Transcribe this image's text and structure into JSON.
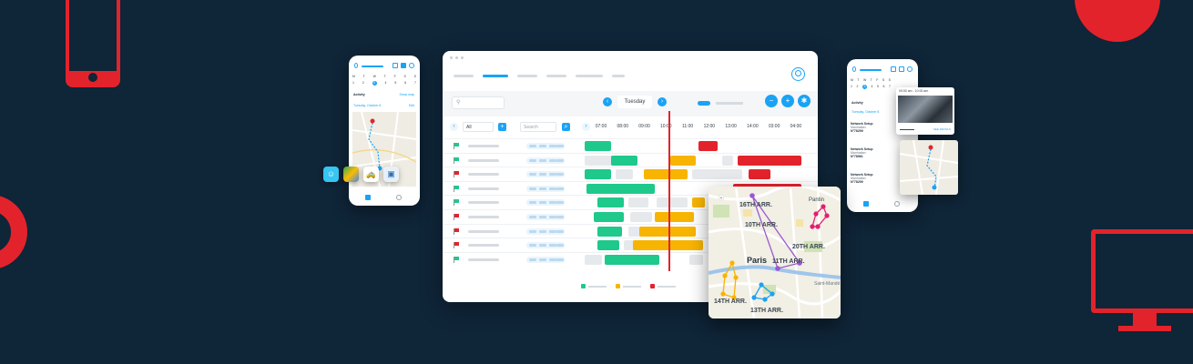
{
  "app": {
    "day_label": "Tuesday",
    "filter_value": "All",
    "search_placeholder": "Search",
    "prev_day": "‹",
    "next_day": "›",
    "filter_add": "+",
    "timeline_prev": "‹",
    "timeline_next": "›"
  },
  "colors": {
    "accent": "#1aa3f5",
    "green": "#1ec98b",
    "yellow": "#f7b400",
    "red": "#e3232b",
    "grey": "#e6e9ec",
    "background": "#0f2538"
  },
  "times": [
    "07:00",
    "08:00",
    "09:00",
    "10:00",
    "11:00",
    "12:00",
    "13:00",
    "14:00",
    "03:00",
    "04:00"
  ],
  "legend": [
    {
      "color": "green"
    },
    {
      "color": "yellow"
    },
    {
      "color": "red"
    }
  ],
  "rows": [
    {
      "flag": "green",
      "blocks": [
        [
          "green",
          0.0,
          0.12
        ],
        [
          "red",
          0.52,
          0.09
        ]
      ]
    },
    {
      "flag": "green",
      "blocks": [
        [
          "grey",
          0.0,
          0.22
        ],
        [
          "green",
          0.12,
          0.12
        ],
        [
          "yellow",
          0.39,
          0.12
        ],
        [
          "grey",
          0.63,
          0.05
        ],
        [
          "red",
          0.7,
          0.29
        ]
      ]
    },
    {
      "flag": "red",
      "blocks": [
        [
          "green",
          0.0,
          0.12
        ],
        [
          "grey",
          0.14,
          0.08
        ],
        [
          "yellow",
          0.27,
          0.2
        ],
        [
          "grey",
          0.49,
          0.23
        ],
        [
          "red",
          0.75,
          0.1
        ]
      ]
    },
    {
      "flag": "green",
      "blocks": [
        [
          "green",
          0.01,
          0.31
        ],
        [
          "red",
          0.68,
          0.31
        ]
      ]
    },
    {
      "flag": "green",
      "blocks": [
        [
          "green",
          0.06,
          0.12
        ],
        [
          "grey",
          0.2,
          0.09
        ],
        [
          "grey",
          0.33,
          0.14
        ],
        [
          "yellow",
          0.49,
          0.06
        ]
      ]
    },
    {
      "flag": "red",
      "blocks": [
        [
          "green",
          0.04,
          0.14
        ],
        [
          "grey",
          0.21,
          0.1
        ],
        [
          "yellow",
          0.32,
          0.18
        ]
      ]
    },
    {
      "flag": "red",
      "blocks": [
        [
          "green",
          0.06,
          0.11
        ],
        [
          "grey",
          0.2,
          0.09
        ],
        [
          "yellow",
          0.25,
          0.26
        ]
      ]
    },
    {
      "flag": "red",
      "blocks": [
        [
          "green",
          0.06,
          0.1
        ],
        [
          "grey",
          0.18,
          0.07
        ],
        [
          "yellow",
          0.22,
          0.32
        ]
      ]
    },
    {
      "flag": "green",
      "blocks": [
        [
          "grey",
          0.0,
          0.08
        ],
        [
          "green",
          0.09,
          0.25
        ],
        [
          "grey",
          0.48,
          0.06
        ]
      ]
    }
  ],
  "map": {
    "labels": [
      "16TH ARR.",
      "10TH ARR.",
      "Pantin",
      "Paris",
      "20TH ARR.",
      "11TH ARR.",
      "14TH ARR.",
      "13TH ARR.",
      "Saint-Mandé"
    ]
  },
  "phone_left": {
    "days": [
      "M",
      "T",
      "W",
      "T",
      "F",
      "S",
      "S"
    ],
    "nums": [
      "1",
      "2",
      "3",
      "4",
      "5",
      "6",
      "7"
    ],
    "selected_index": 2,
    "activity": "Activity",
    "show_label": "Show map",
    "filter_label": "Tuesday, October 8",
    "edit_label": "Edit"
  },
  "phone_right": {
    "days": [
      "M",
      "T",
      "W",
      "T",
      "F",
      "S",
      "S"
    ],
    "nums": [
      "1",
      "2",
      "3",
      "4",
      "5",
      "6",
      "7"
    ],
    "selected_index": 2,
    "activity": "Activity",
    "filter_label": "Tuesday, October 8",
    "items": [
      {
        "title": "Network Setup",
        "sub": "Manhattan",
        "id": "N°78299"
      },
      {
        "title": "Network Setup",
        "sub": "Manhattan",
        "id": "N°78961"
      },
      {
        "title": "Network Setup",
        "sub": "Manhattan",
        "id": "N°78299"
      }
    ],
    "popup_header": "09:00 am - 10:00 am",
    "popup_link": "SEE DETAILS"
  },
  "apps": [
    "waze-icon",
    "google-maps-icon",
    "taxi-icon",
    "mappy-icon"
  ]
}
